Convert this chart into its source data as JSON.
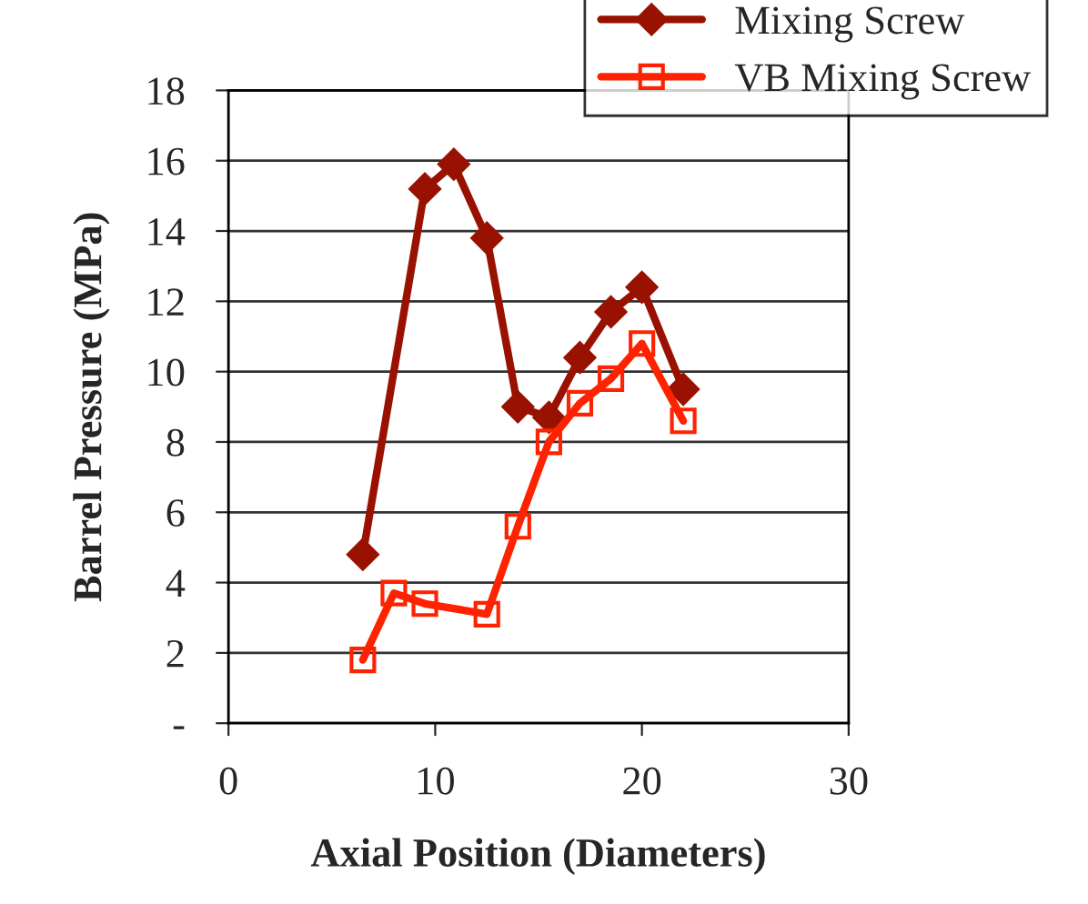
{
  "chart_data": {
    "type": "line",
    "xlabel": "Axial Position (Diameters)",
    "ylabel": "Barrel Pressure (MPa)",
    "xlim": [
      0,
      30
    ],
    "xticks": [
      0,
      10,
      20,
      30
    ],
    "ylim": [
      0,
      18
    ],
    "yticks": [
      {
        "value": 0,
        "label": "-"
      },
      2,
      4,
      6,
      8,
      10,
      12,
      14,
      16,
      18
    ],
    "grid": "y",
    "legend": "top right",
    "line_style": "solid",
    "series": [
      {
        "name": "Mixing Screw",
        "color": "#991100",
        "marker": "diamond",
        "x": [
          6.5,
          9.5,
          10.9,
          12.5,
          14,
          15.5,
          17,
          18.5,
          20,
          22
        ],
        "values": [
          4.8,
          15.2,
          15.9,
          13.8,
          9.0,
          8.7,
          10.4,
          11.7,
          12.4,
          9.5
        ]
      },
      {
        "name": "VB Mixing Screw",
        "color": "#ff2200",
        "marker": "square",
        "x": [
          6.5,
          8,
          9.5,
          12.5,
          14,
          15.5,
          17,
          18.5,
          20,
          22
        ],
        "values": [
          1.8,
          3.7,
          3.4,
          3.1,
          5.6,
          8.0,
          9.1,
          9.8,
          10.8,
          8.6
        ]
      }
    ]
  }
}
